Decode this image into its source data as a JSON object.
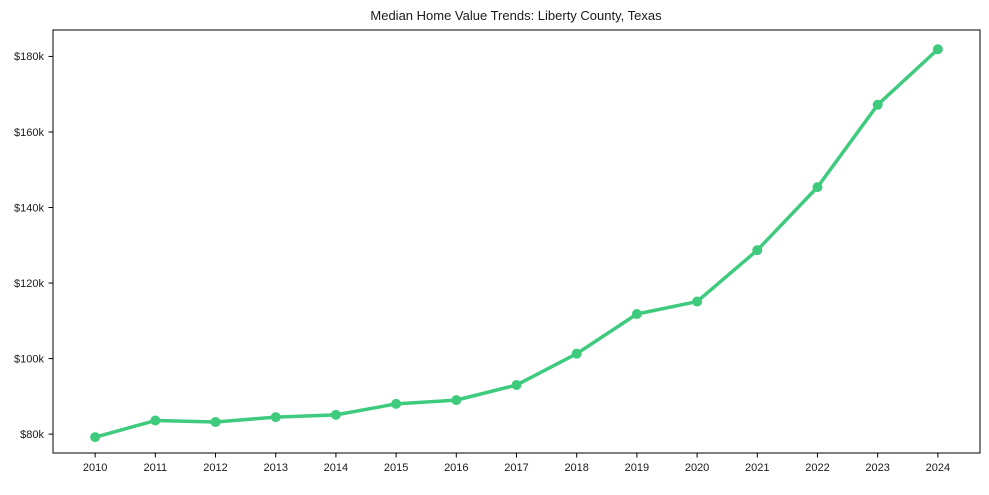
{
  "figure": {
    "background": "#ffffff"
  },
  "chart_data": {
    "type": "line",
    "title": "Median Home Value Trends: Liberty County, Texas",
    "series": [
      {
        "name": "Median Home Value",
        "x": [
          2010,
          2011,
          2012,
          2013,
          2014,
          2015,
          2016,
          2017,
          2018,
          2019,
          2020,
          2021,
          2022,
          2023,
          2024
        ],
        "values": [
          79200,
          83600,
          83200,
          84500,
          85100,
          88000,
          89000,
          93000,
          101300,
          111800,
          115100,
          128700,
          145400,
          167200,
          181900
        ],
        "color": "#3ecb7e",
        "marker": "circle",
        "line_width": 3.5,
        "marker_radius": 5
      }
    ],
    "xlabel": "",
    "ylabel": "",
    "xlim": [
      2009.3,
      2024.7
    ],
    "ylim": [
      75000,
      187000
    ],
    "xticks": [
      2010,
      2011,
      2012,
      2013,
      2014,
      2015,
      2016,
      2017,
      2018,
      2019,
      2020,
      2021,
      2022,
      2023,
      2024
    ],
    "xtick_labels": [
      "2010",
      "2011",
      "2012",
      "2013",
      "2014",
      "2015",
      "2016",
      "2017",
      "2018",
      "2019",
      "2020",
      "2021",
      "2022",
      "2023",
      "2024"
    ],
    "yticks": [
      80000,
      100000,
      120000,
      140000,
      160000,
      180000
    ],
    "ytick_labels": [
      "$80k",
      "$100k",
      "$120k",
      "$140k",
      "$160k",
      "$180k"
    ],
    "grid": false,
    "legend": "none",
    "axis_color": "#000000",
    "text_color": "#1a1a1a",
    "tick_font_size": 11,
    "title_font_size": 13
  }
}
